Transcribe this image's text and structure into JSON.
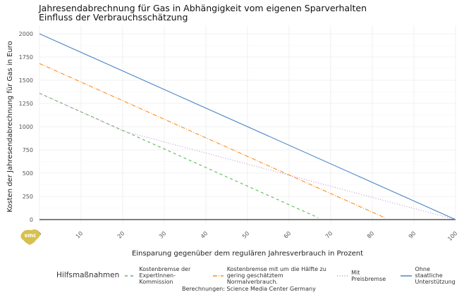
{
  "chart_data": {
    "type": "line",
    "title": "Jahresendabrechnung für Gas in Abhängigkeit vom eigenen Sparverhalten",
    "subtitle": "Einfluss der Verbrauchsschätzung",
    "xlabel": "Einsparung gegenüber dem regulären Jahresverbrauch in Prozent",
    "ylabel": "Kosten der Jahresendabrechnung für Gas in Euro",
    "xlim": [
      0,
      100
    ],
    "ylim": [
      0,
      2000
    ],
    "xticks": [
      0,
      10,
      20,
      30,
      40,
      50,
      60,
      70,
      80,
      90,
      100
    ],
    "yticks": [
      0,
      250,
      500,
      750,
      1000,
      1250,
      1500,
      1750,
      2000
    ],
    "grid": true,
    "legend_title": "Hilfsmaßnahmen",
    "legend_position": "bottom",
    "series": [
      {
        "name": "Kostenbremse der ExpertInnen-Kommission",
        "label_lines": [
          "Kostenbremse der",
          "ExpertInnen-Kommission"
        ],
        "color": "#5cb85c",
        "dash": "4,4",
        "points": [
          [
            0,
            1360
          ],
          [
            67,
            20
          ]
        ]
      },
      {
        "name": "Kostenbremse mit um die Hälfte zu gering geschätztem Normalverbrauch.",
        "label_lines": [
          "Kostenbremse mit um die Hälfte zu",
          "gering geschätztem Normalverbrauch."
        ],
        "color": "#ff8c1a",
        "dash": "6,2,1,2",
        "points": [
          [
            0,
            1680
          ],
          [
            83,
            20
          ]
        ]
      },
      {
        "name": "Mit Preisbremse",
        "label_lines": [
          "Mit Preisbremse"
        ],
        "color": "#c38ed0",
        "dash": "1,2.5",
        "points": [
          [
            0,
            1360
          ],
          [
            20,
            955
          ],
          [
            100,
            0
          ]
        ]
      },
      {
        "name": "Ohne staatliche Unterstützung",
        "label_lines": [
          "Ohne staatliche",
          "Unterstützung"
        ],
        "color": "#4a86c5",
        "dash": "",
        "points": [
          [
            0,
            2000
          ],
          [
            100,
            0
          ]
        ]
      }
    ],
    "caption": "Berechnungen: Science Media Center Germany",
    "logo_text": "smc"
  }
}
